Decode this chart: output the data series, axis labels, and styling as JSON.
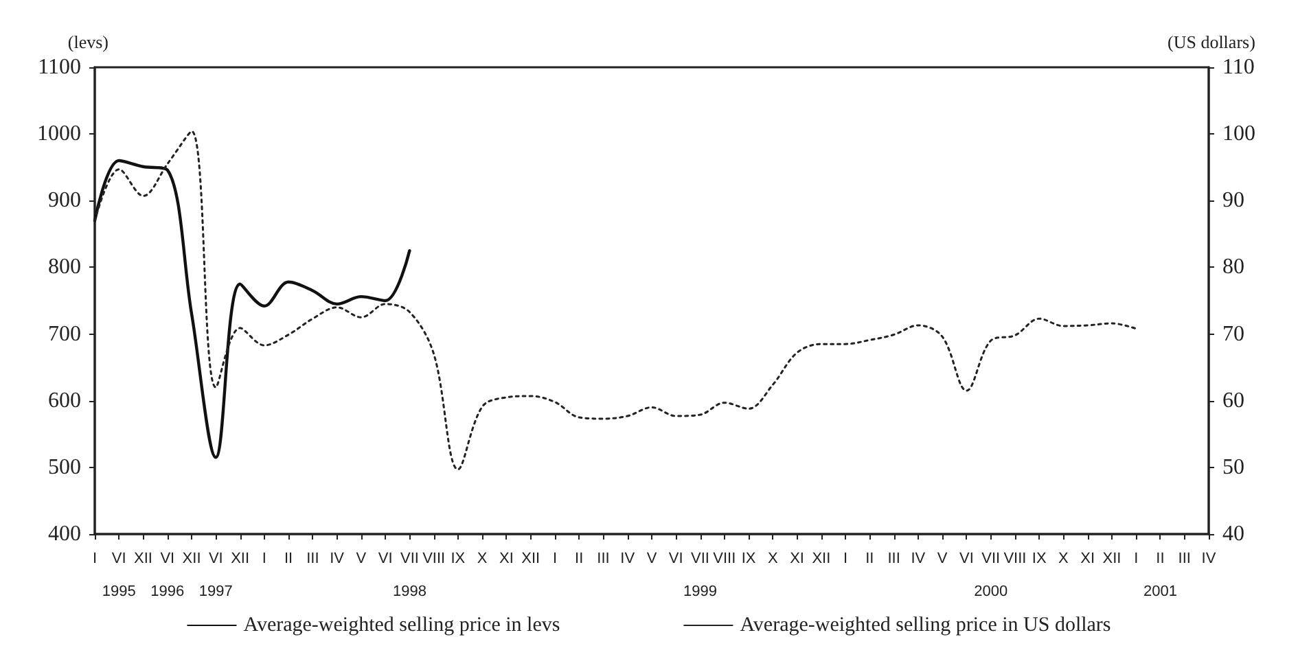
{
  "chart_data": {
    "type": "line",
    "ylabel": "(levs)",
    "y2label": "(US dollars)",
    "categories": [
      "I",
      "VI\n1995",
      "XII",
      "VI\n1996",
      "XII",
      "VI\n1997",
      "XII",
      "I",
      "II",
      "III",
      "IV",
      "V",
      "VI",
      "VII\n1998",
      "VIII",
      "IX",
      "X",
      "XI",
      "XII",
      "I",
      "II",
      "III",
      "IV",
      "V",
      "VI",
      "VII\n1999",
      "VIII",
      "IX",
      "X",
      "XI",
      "XII",
      "I",
      "II",
      "III",
      "IV",
      "V",
      "VI",
      "VII\n2000",
      "VIII",
      "IX",
      "X",
      "XI",
      "XII",
      "I",
      "II\n2001",
      "III",
      "IV"
    ],
    "series": [
      {
        "name": "Average-weighted selling price in levs",
        "color": "#111111",
        "line_style": "solid",
        "values": [
          870,
          960,
          951,
          946,
          730,
          515,
          775,
          742,
          778,
          765,
          745,
          756,
          750,
          825,
          null,
          null,
          null,
          null,
          null,
          null,
          null,
          null,
          null,
          null,
          null,
          null,
          null,
          null,
          null,
          null,
          null,
          null,
          null,
          null,
          null,
          null,
          null,
          null,
          null,
          null,
          null,
          null,
          null,
          null,
          null,
          null,
          null
        ]
      },
      {
        "name": "Average-weighted selling price in US dollars",
        "color": "#222222",
        "line_style": "dotted",
        "axis": "y2",
        "values": [
          87,
          94.7,
          90.7,
          95.5,
          100.4,
          62,
          70.9,
          68.3,
          69.9,
          72.3,
          74,
          72.5,
          74.5,
          73.3,
          67,
          49.7,
          59.1,
          60.5,
          60.7,
          59.8,
          57.5,
          57.3,
          57.7,
          59,
          57.7,
          57.9,
          59.7,
          58.8,
          62.4,
          67.2,
          68.5,
          68.5,
          69.1,
          69.9,
          71.3,
          69.6,
          61.5,
          69,
          69.8,
          72.3,
          71.2,
          71.3,
          71.6,
          70.8,
          null,
          null,
          null
        ]
      }
    ],
    "ylim": [
      400,
      1100
    ],
    "yticks": [
      400,
      500,
      600,
      700,
      800,
      900,
      1000,
      1100
    ],
    "y2lim": [
      40,
      110
    ],
    "y2ticks": [
      40,
      50,
      60,
      70,
      80,
      90,
      100,
      110
    ],
    "grid": false,
    "legend": "bottom",
    "marker": "none"
  }
}
